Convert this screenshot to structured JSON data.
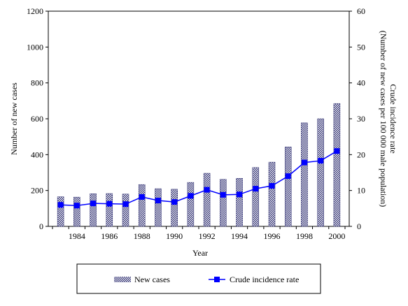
{
  "chart_data": {
    "type": "bar",
    "x": [
      1983,
      1984,
      1985,
      1986,
      1987,
      1988,
      1989,
      1990,
      1991,
      1992,
      1993,
      1994,
      1995,
      1996,
      1997,
      1998,
      1999,
      2000
    ],
    "x_tick_labels": [
      "1984",
      "1986",
      "1988",
      "1990",
      "1992",
      "1994",
      "1996",
      "1998",
      "2000"
    ],
    "xlabel": "Year",
    "ylabel_left": "Number of new cases",
    "ylabel_right_line1": "Crude incidence  rate",
    "ylabel_right_line2": "(Number of new cases per 100 000 male population)",
    "ylim_left": [
      0,
      1200
    ],
    "yticks_left": [
      "0",
      "200",
      "400",
      "600",
      "800",
      "1000",
      "1200"
    ],
    "ylim_right": [
      0,
      60
    ],
    "yticks_right": [
      "0",
      "10",
      "20",
      "30",
      "40",
      "50",
      "60"
    ],
    "grid": false,
    "legend_position": "bottom",
    "series": [
      {
        "name": "New cases",
        "type": "bar",
        "axis": "left",
        "pattern": "checkered",
        "color": "#2a2a6e",
        "values": [
          165,
          163,
          182,
          183,
          180,
          233,
          210,
          207,
          245,
          296,
          262,
          268,
          328,
          358,
          443,
          577,
          600,
          685
        ]
      },
      {
        "name": "Crude incidence rate",
        "type": "line",
        "axis": "right",
        "color": "#0000ff",
        "values": [
          6.0,
          5.8,
          6.4,
          6.3,
          6.2,
          8.2,
          7.2,
          6.8,
          8.5,
          10.2,
          8.8,
          8.9,
          10.5,
          11.3,
          14.0,
          17.8,
          18.3,
          21.0
        ]
      }
    ]
  }
}
